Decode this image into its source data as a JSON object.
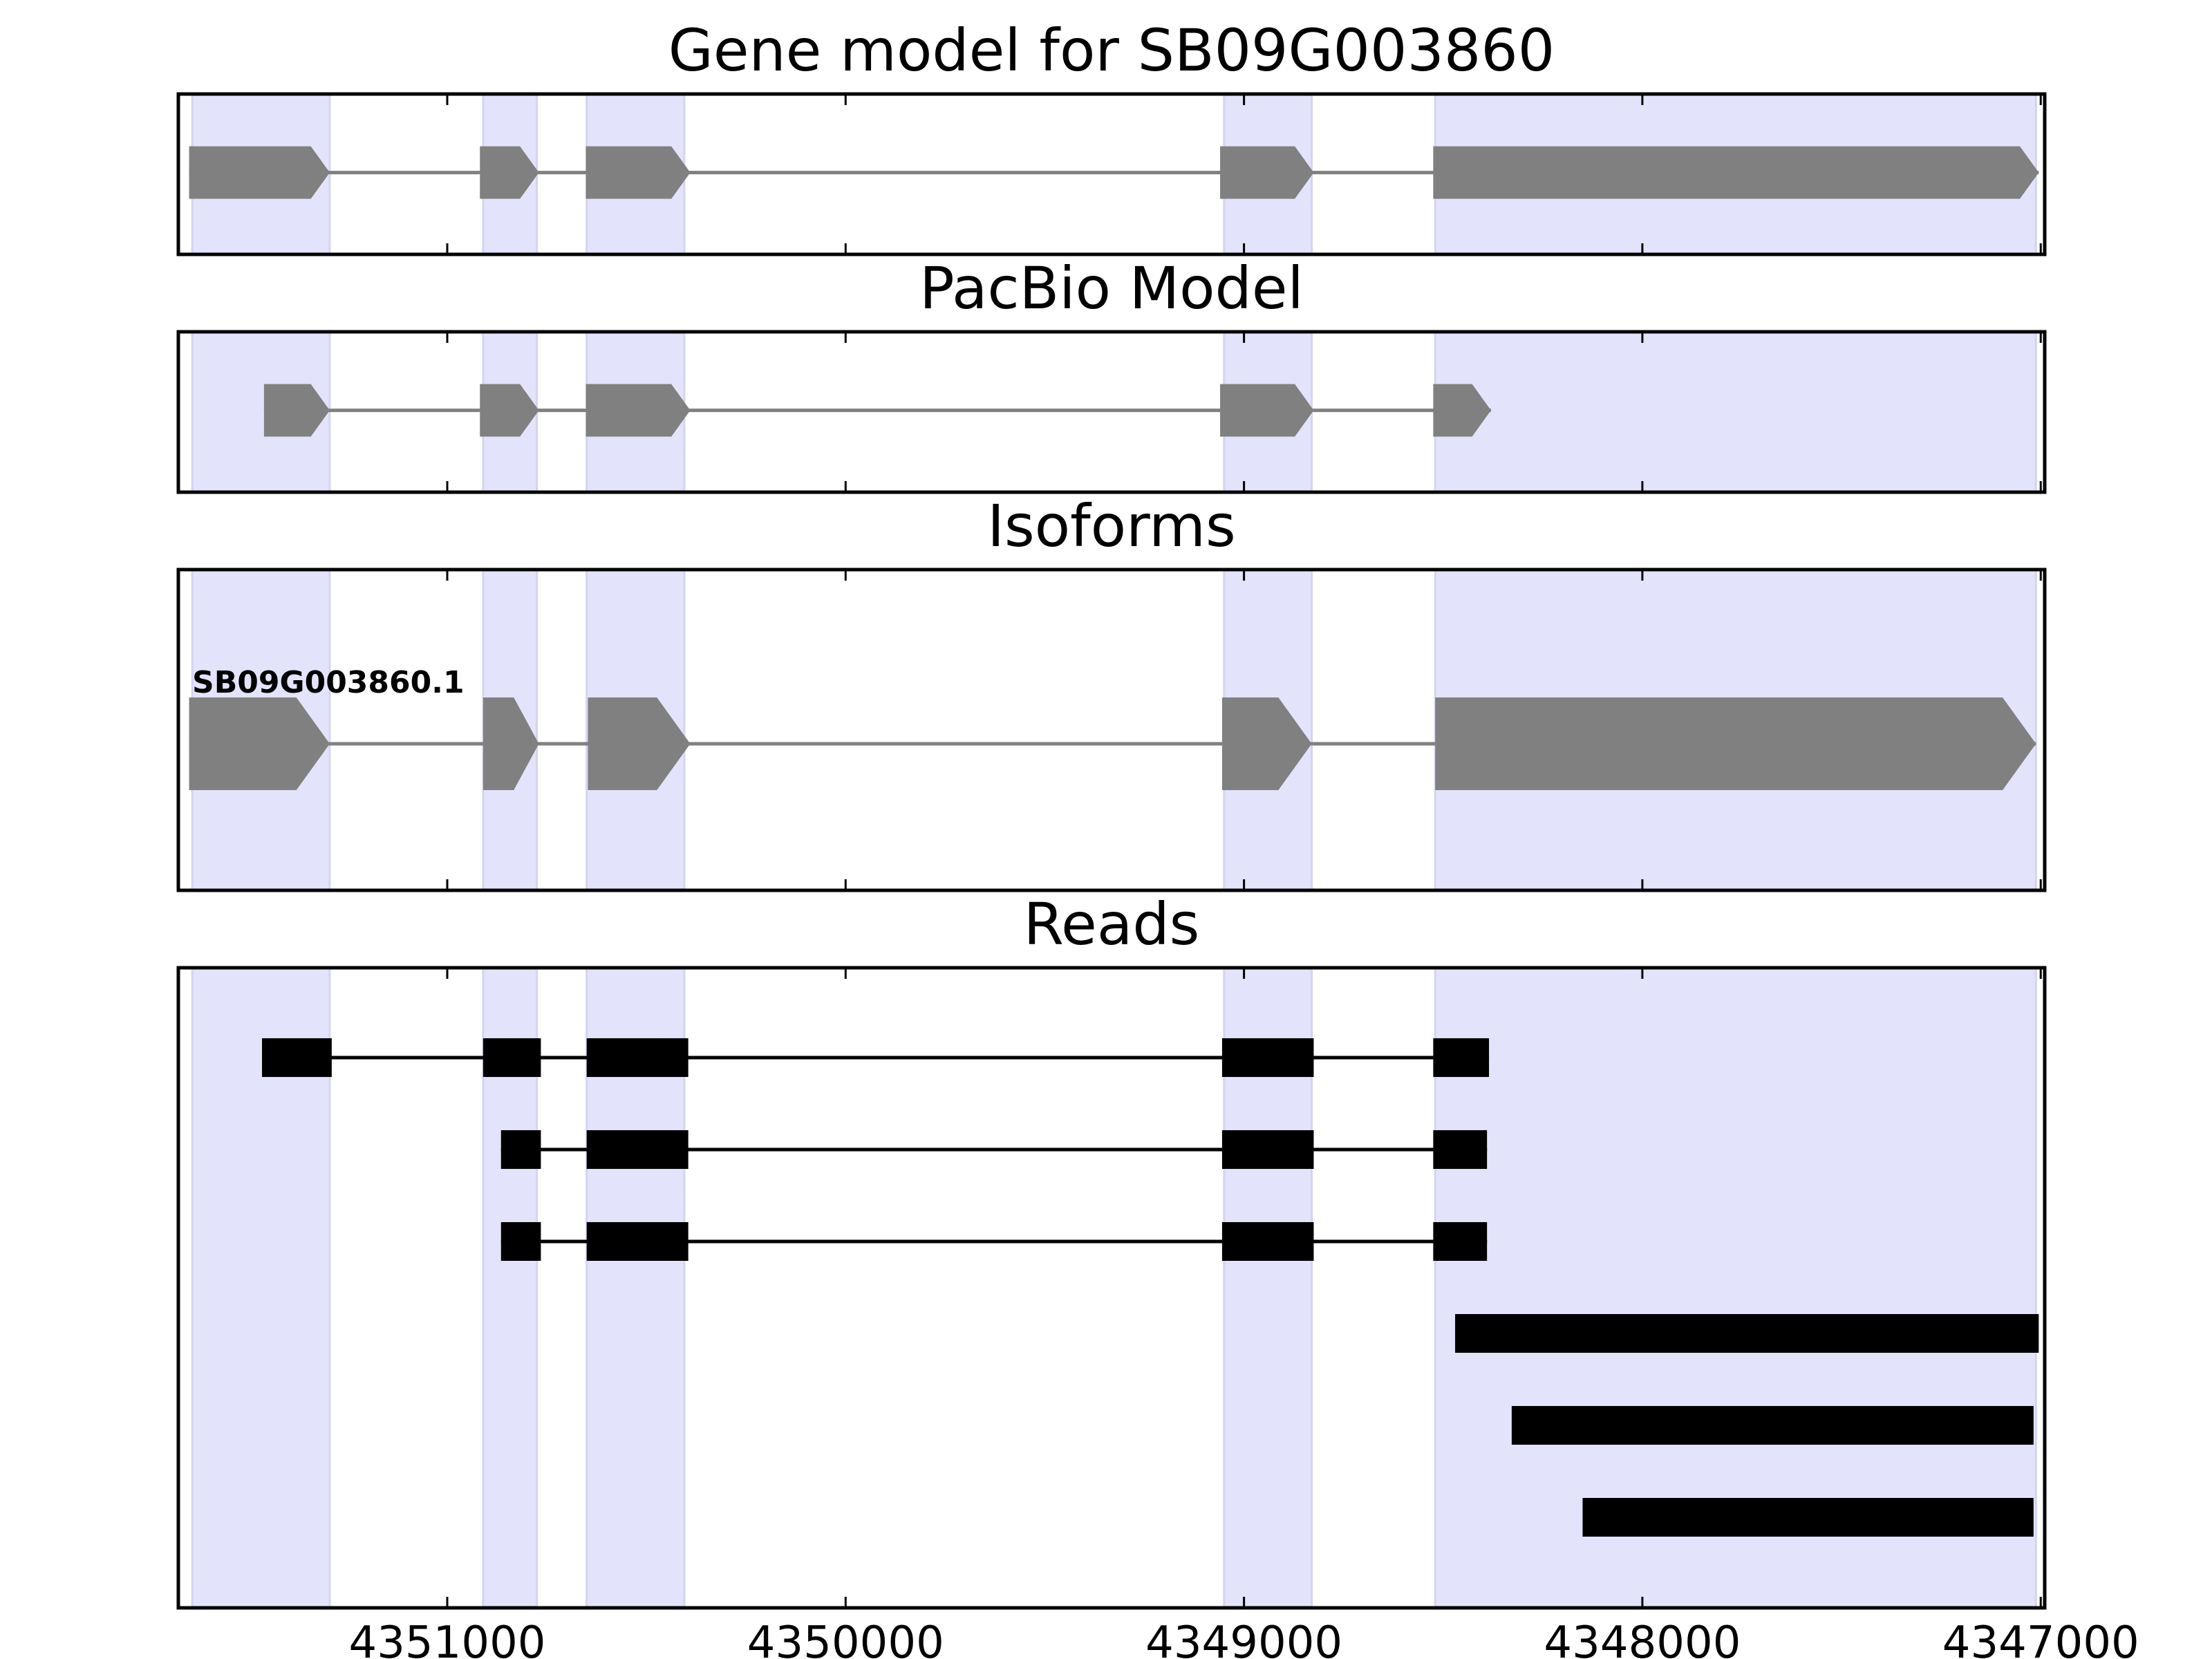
{
  "chart_data": {
    "type": "gene-track",
    "strand": "minus",
    "x_axis": {
      "reversed": true,
      "xlim": [
        4351675,
        4346990
      ],
      "ticks": [
        4351000,
        4350000,
        4349000,
        4348000,
        4347000
      ],
      "tick_labels": [
        "4351000",
        "4350000",
        "4349000",
        "4348000",
        "4347000"
      ]
    },
    "exon_highlights": [
      {
        "start": 4351295,
        "end": 4351640
      },
      {
        "start": 4350775,
        "end": 4350910
      },
      {
        "start": 4350405,
        "end": 4350650
      },
      {
        "start": 4348830,
        "end": 4349050
      },
      {
        "start": 4347012,
        "end": 4348520
      }
    ],
    "panels": [
      {
        "title": "Gene model for SB09G003860",
        "track_type": "gene_model",
        "exons": [
          {
            "start": 4351295,
            "end": 4351648
          },
          {
            "start": 4350770,
            "end": 4350918
          },
          {
            "start": 4350390,
            "end": 4350652
          },
          {
            "start": 4348825,
            "end": 4349060
          },
          {
            "start": 4347005,
            "end": 4348525
          }
        ]
      },
      {
        "title": "PacBio Model",
        "track_type": "gene_model",
        "exons": [
          {
            "start": 4351295,
            "end": 4351460
          },
          {
            "start": 4350770,
            "end": 4350918
          },
          {
            "start": 4350390,
            "end": 4350652
          },
          {
            "start": 4348825,
            "end": 4349060
          },
          {
            "start": 4348380,
            "end": 4348525
          }
        ]
      },
      {
        "title": "Isoforms",
        "track_type": "isoforms",
        "isoform_label": "SB09G003860.1",
        "exons": [
          {
            "start": 4351295,
            "end": 4351648
          },
          {
            "start": 4350770,
            "end": 4350910
          },
          {
            "start": 4350390,
            "end": 4350647
          },
          {
            "start": 4348830,
            "end": 4349055
          },
          {
            "start": 4347012,
            "end": 4348520
          }
        ]
      },
      {
        "title": "Reads",
        "track_type": "reads",
        "reads": [
          {
            "exons": [
              {
                "start": 4351290,
                "end": 4351465
              },
              {
                "start": 4350765,
                "end": 4350910
              },
              {
                "start": 4350395,
                "end": 4350650
              },
              {
                "start": 4348825,
                "end": 4349055
              },
              {
                "start": 4348385,
                "end": 4348525
              }
            ]
          },
          {
            "exons": [
              {
                "start": 4350765,
                "end": 4350865
              },
              {
                "start": 4350395,
                "end": 4350650
              },
              {
                "start": 4348825,
                "end": 4349055
              },
              {
                "start": 4348390,
                "end": 4348525
              }
            ]
          },
          {
            "exons": [
              {
                "start": 4350765,
                "end": 4350865
              },
              {
                "start": 4350395,
                "end": 4350650
              },
              {
                "start": 4348825,
                "end": 4349055
              },
              {
                "start": 4348390,
                "end": 4348525
              }
            ]
          },
          {
            "exons": [
              {
                "start": 4347005,
                "end": 4348470
              }
            ]
          },
          {
            "exons": [
              {
                "start": 4347018,
                "end": 4348328
              }
            ]
          },
          {
            "exons": [
              {
                "start": 4347018,
                "end": 4348150
              }
            ]
          }
        ]
      }
    ],
    "colors": {
      "highlight": "#e3e3fb",
      "highlight_edge": "#d4d4f1",
      "gene_feature": "#808080",
      "read": "#000000",
      "axis": "#000000"
    }
  }
}
